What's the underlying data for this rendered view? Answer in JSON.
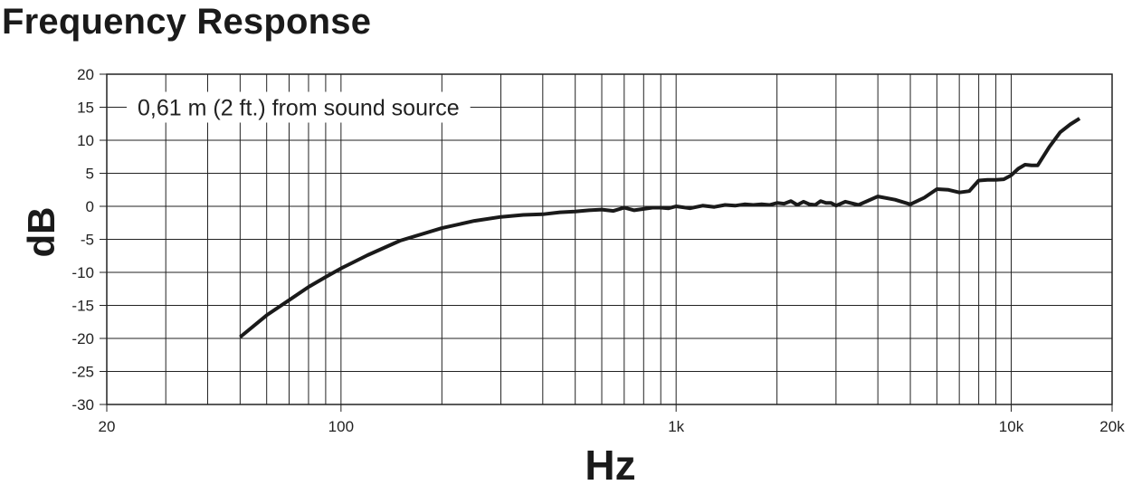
{
  "title": "Frequency Response",
  "chart_data": {
    "type": "line",
    "title": "Frequency Response",
    "xlabel": "Hz",
    "ylabel": "dB",
    "xscale": "log",
    "xlim": [
      20,
      20000
    ],
    "ylim": [
      -30,
      20
    ],
    "grid": true,
    "x_tick_values": [
      20,
      100,
      1000,
      10000,
      20000
    ],
    "x_tick_labels": [
      "20",
      "100",
      "1k",
      "10k",
      "20k"
    ],
    "y_ticks": [
      20,
      15,
      10,
      5,
      0,
      -5,
      -10,
      -15,
      -20,
      -25,
      -30
    ],
    "annotation": "0,61 m (2 ft.) from sound source",
    "series": [
      {
        "color": "#1a1a1a",
        "x": [
          50,
          60,
          70,
          80,
          90,
          100,
          120,
          150,
          200,
          250,
          300,
          350,
          400,
          450,
          500,
          550,
          600,
          650,
          700,
          750,
          800,
          850,
          900,
          950,
          1000,
          1100,
          1200,
          1300,
          1400,
          1500,
          1600,
          1700,
          1800,
          1900,
          2000,
          2100,
          2200,
          2300,
          2400,
          2500,
          2600,
          2700,
          2800,
          2900,
          3000,
          3200,
          3500,
          4000,
          4500,
          5000,
          5500,
          6000,
          6500,
          7000,
          7500,
          8000,
          8500,
          9000,
          9500,
          10000,
          10500,
          11000,
          11500,
          12000,
          13000,
          14000,
          15000,
          16000
        ],
        "y": [
          -19.8,
          -16.5,
          -14.2,
          -12.2,
          -10.7,
          -9.4,
          -7.4,
          -5.2,
          -3.3,
          -2.2,
          -1.6,
          -1.3,
          -1.2,
          -0.9,
          -0.8,
          -0.6,
          -0.5,
          -0.7,
          -0.2,
          -0.6,
          -0.4,
          -0.2,
          -0.2,
          -0.3,
          0.0,
          -0.3,
          0.1,
          -0.1,
          0.2,
          0.1,
          0.3,
          0.2,
          0.3,
          0.2,
          0.5,
          0.4,
          0.8,
          0.2,
          0.7,
          0.3,
          0.2,
          0.8,
          0.5,
          0.5,
          0.1,
          0.7,
          0.2,
          1.5,
          1.0,
          0.3,
          1.3,
          2.6,
          2.5,
          2.1,
          2.3,
          3.9,
          4.0,
          4.0,
          4.1,
          4.7,
          5.7,
          6.3,
          6.2,
          6.2,
          9.0,
          11.2,
          12.4,
          13.3
        ]
      }
    ]
  }
}
